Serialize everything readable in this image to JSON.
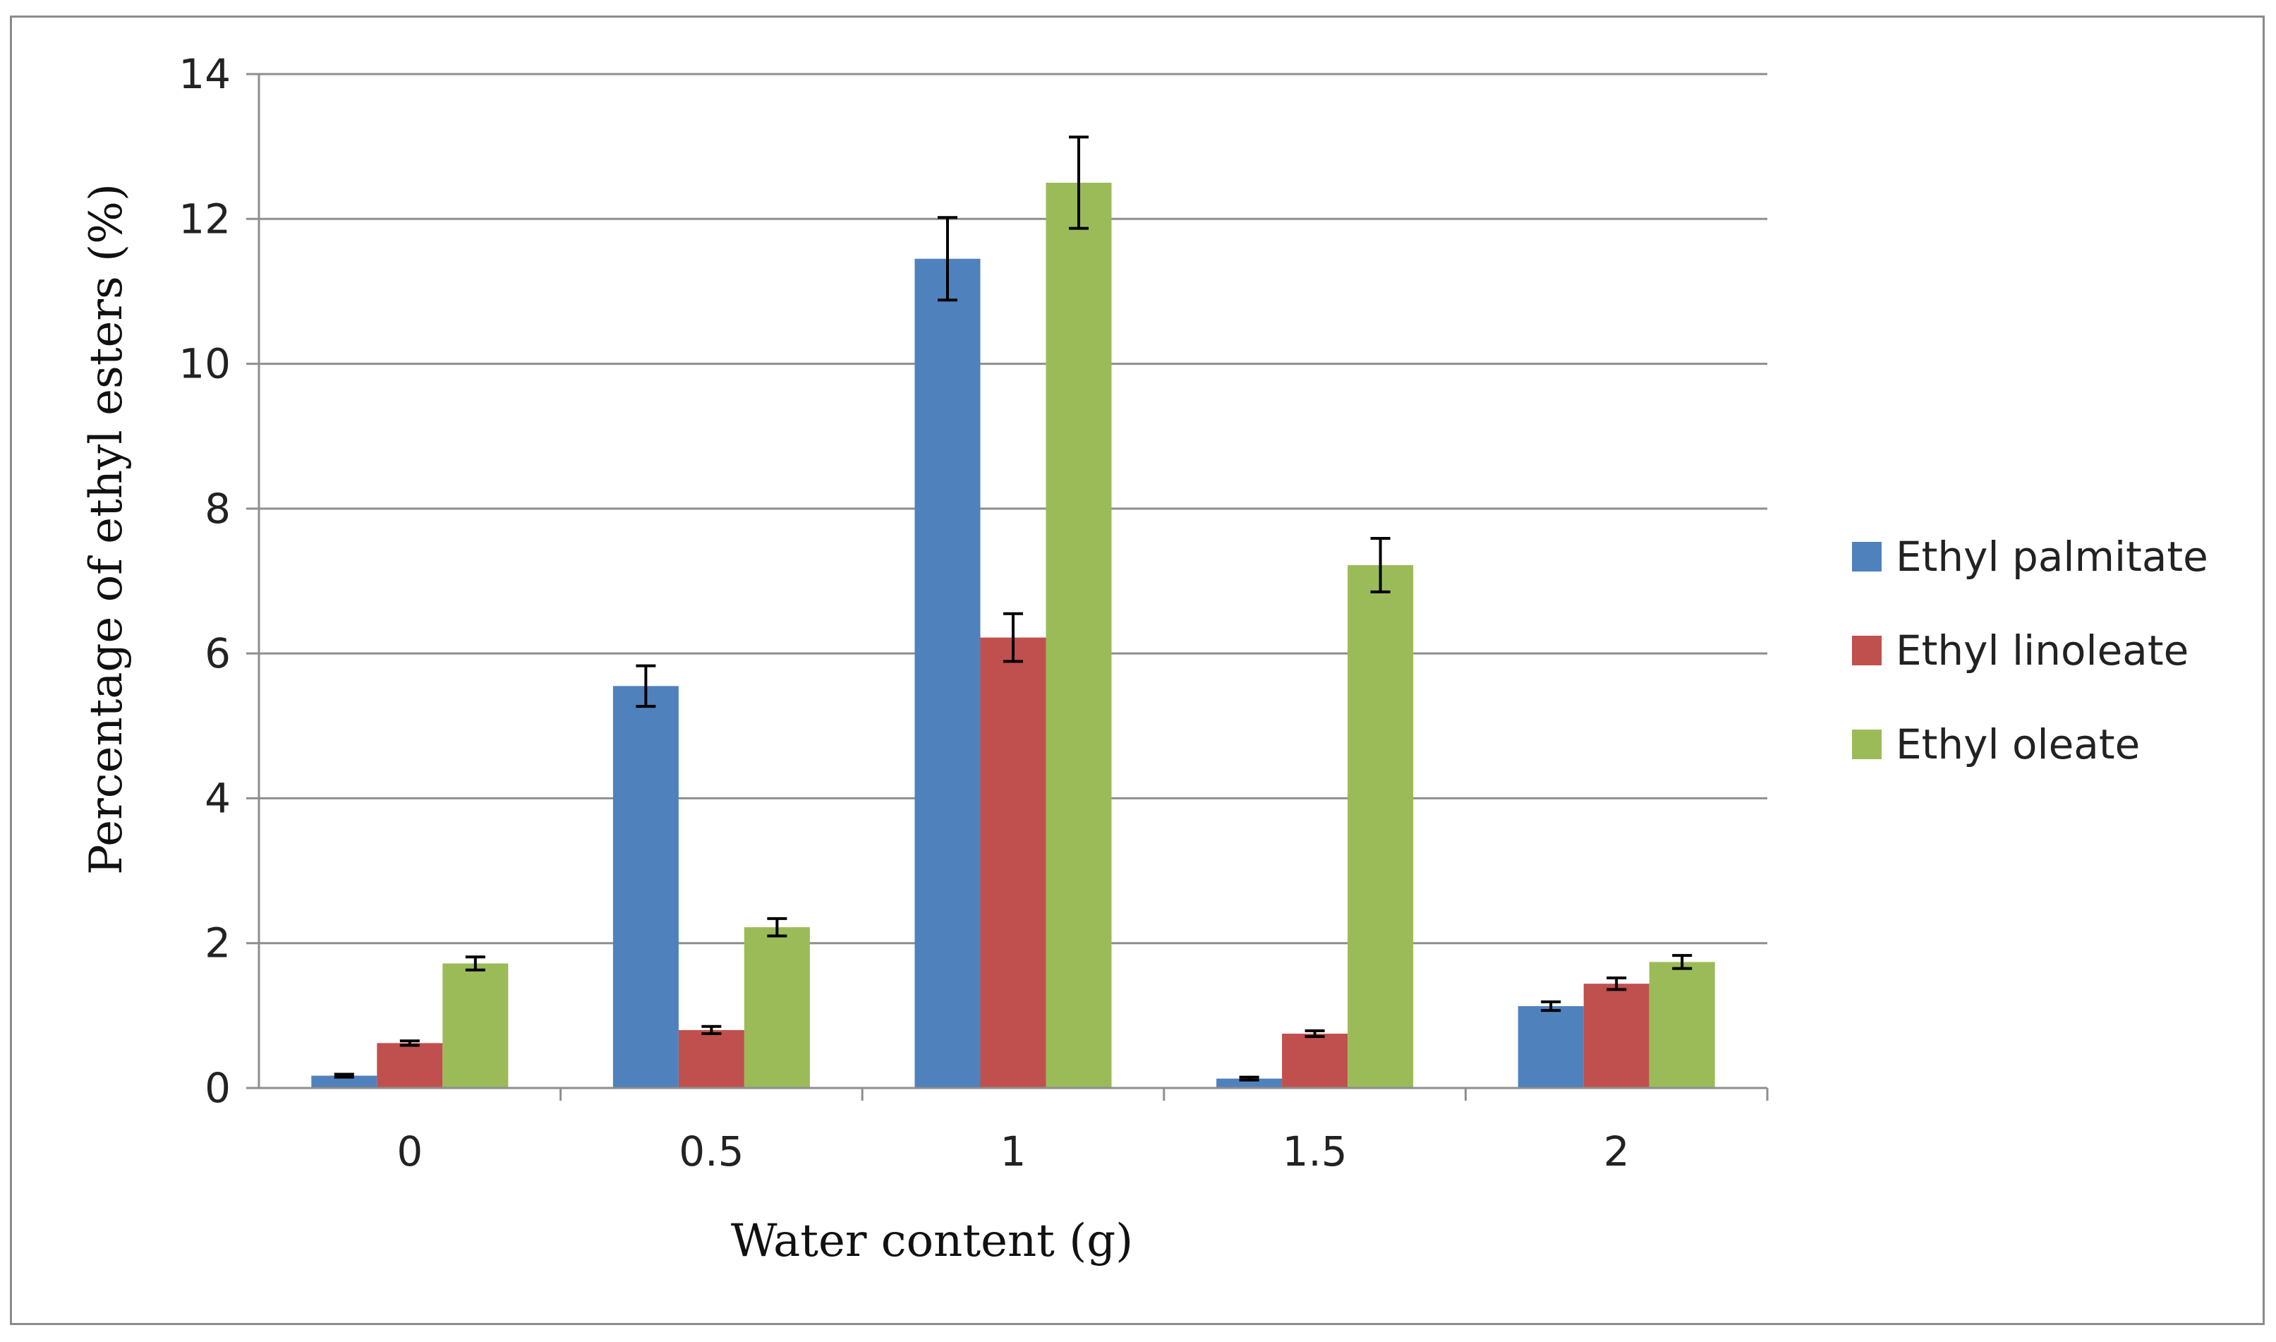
{
  "chart_data": {
    "type": "bar",
    "title": "",
    "xlabel": "Water content (g)",
    "ylabel": "Percentage of ethyl esters (%)",
    "categories": [
      "0",
      "0.5",
      "1",
      "1.5",
      "2"
    ],
    "ylim": [
      0,
      14
    ],
    "yticks": [
      "0",
      "2",
      "4",
      "6",
      "8",
      "10",
      "12",
      "14"
    ],
    "grid": true,
    "legend_position": "right",
    "series": [
      {
        "name": "Ethyl palmitate",
        "color": "#4F81BD",
        "values": [
          0.17,
          5.55,
          11.45,
          0.13,
          1.13
        ],
        "errors": [
          0.02,
          0.28,
          0.57,
          0.02,
          0.06
        ]
      },
      {
        "name": "Ethyl linoleate",
        "color": "#C0504D",
        "values": [
          0.62,
          0.8,
          6.22,
          0.75,
          1.44
        ],
        "errors": [
          0.03,
          0.05,
          0.33,
          0.04,
          0.08
        ]
      },
      {
        "name": "Ethyl oleate",
        "color": "#9BBB59",
        "values": [
          1.72,
          2.22,
          12.5,
          7.22,
          1.74
        ],
        "errors": [
          0.09,
          0.12,
          0.63,
          0.37,
          0.09
        ]
      }
    ]
  }
}
